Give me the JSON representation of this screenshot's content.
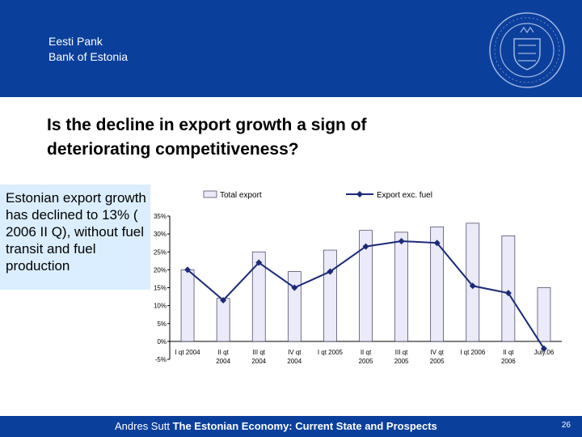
{
  "header": {
    "bank_name_line1": "Eesti Pank",
    "bank_name_line2": "Bank of Estonia",
    "color": "#0b3f9c"
  },
  "slide": {
    "title_line1": "Is the decline in export growth a sign of",
    "title_line2": "deteriorating competitiveness?"
  },
  "callout": {
    "text": "Estonian export growth has declined to 13% ( 2006 II Q), without fuel transit and fuel production",
    "background": "#dbeeff"
  },
  "footer": {
    "author": "Andres Sutt",
    "title": "The Estonian Economy: Current State and Prospects",
    "page": "26"
  },
  "chart_data": {
    "type": "bar",
    "categories": [
      "I qt 2004",
      "II qt 2004",
      "III qt 2004",
      "IV qt 2004",
      "I qt 2005",
      "II qt 2005",
      "III qt 2005",
      "IV qt 2005",
      "I qt 2006",
      "II qt 2006",
      "July.06"
    ],
    "series": [
      {
        "name": "Total export",
        "kind": "bar",
        "values": [
          20,
          12,
          25,
          19.5,
          25.5,
          31,
          30.5,
          32,
          33,
          29.5,
          15
        ],
        "color": "#eaeaf8"
      },
      {
        "name": "Export exc. fuel",
        "kind": "line",
        "values": [
          20,
          11.5,
          22,
          15,
          19.5,
          26.5,
          28,
          27.5,
          15.5,
          13.5,
          -2
        ],
        "color": "#1a2a7a"
      }
    ],
    "yticks": [
      "35%",
      "30%",
      "25%",
      "20%",
      "15%",
      "10%",
      "5%",
      "0%",
      "-5%"
    ],
    "ylim": [
      -5,
      35
    ],
    "grid": false,
    "legend": "top"
  }
}
